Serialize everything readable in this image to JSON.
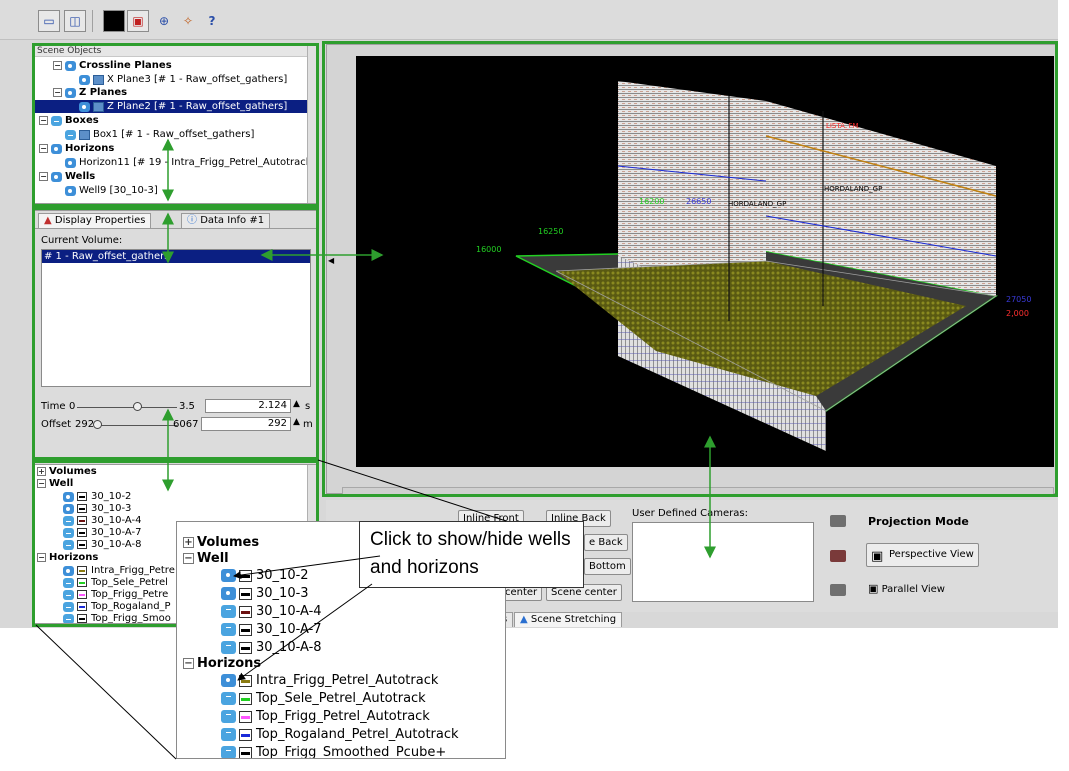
{
  "scene_objects": {
    "title": "Scene Objects",
    "items": [
      {
        "label": "Crossline Planes",
        "bold": true
      },
      {
        "label": "X Plane3 [# 1 - Raw_offset_gathers]",
        "bold": false
      },
      {
        "label": "Z Planes",
        "bold": true
      },
      {
        "label": "Z Plane2 [# 1 - Raw_offset_gathers]",
        "bold": false
      },
      {
        "label": "Boxes",
        "bold": true
      },
      {
        "label": "Box1 [# 1 - Raw_offset_gathers]",
        "bold": false
      },
      {
        "label": "Horizons",
        "bold": true
      },
      {
        "label": "Horizon11 [# 19 - Intra_Frigg_Petrel_Autotrack",
        "bold": false
      },
      {
        "label": "Wells",
        "bold": true
      },
      {
        "label": "Well9 [30_10-3]",
        "bold": false
      }
    ]
  },
  "display_properties": {
    "tabs": [
      "Display Properties",
      "Data Info #1"
    ],
    "current_volume_label": "Current Volume:",
    "current_volume_item": "# 1 - Raw_offset_gathers",
    "time": {
      "label": "Time",
      "min": "0",
      "max": "3.5",
      "value": "2.124",
      "unit": "s",
      "fraction": 0.6
    },
    "offset": {
      "label": "Offset",
      "min": "292",
      "max": "6067",
      "value": "292",
      "unit": "m",
      "fraction": 0.0
    }
  },
  "layer_tree": {
    "volumes_label": "Volumes",
    "well_label": "Well",
    "wells": [
      {
        "name": "30_10-2",
        "color": "#000000",
        "visible": true
      },
      {
        "name": "30_10-3",
        "color": "#000000",
        "visible": true
      },
      {
        "name": "30_10-A-4",
        "color": "#6b0f0f",
        "visible": false
      },
      {
        "name": "30_10-A-7",
        "color": "#000000",
        "visible": false
      },
      {
        "name": "30_10-A-8",
        "color": "#000000",
        "visible": false
      }
    ],
    "horizons_label": "Horizons",
    "horizons_short": [
      "Intra_Frigg_Petre",
      "Top_Sele_Petrel",
      "Top_Frigg_Petre",
      "Top_Rogaland_P",
      "Top_Frigg_Smoo"
    ],
    "horizons": [
      {
        "name": "Intra_Frigg_Petrel_Autotrack",
        "color": "#8a7a10",
        "visible": true
      },
      {
        "name": "Top_Sele_Petrel_Autotrack",
        "color": "#22d022",
        "visible": false
      },
      {
        "name": "Top_Frigg_Petrel_Autotrack",
        "color": "#ff55ff",
        "visible": false
      },
      {
        "name": "Top_Rogaland_Petrel_Autotrack",
        "color": "#1a2ad8",
        "visible": false
      },
      {
        "name": "Top_Frigg_Smoothed_Pcube+",
        "color": "#000000",
        "visible": false
      }
    ]
  },
  "viewport": {
    "labels": [
      {
        "text": "16000",
        "color": "#22d022"
      },
      {
        "text": "16250",
        "color": "#22d022"
      },
      {
        "text": "16200",
        "color": "#22d022"
      },
      {
        "text": "26650",
        "color": "#3a3ad8"
      },
      {
        "text": "HORDALAND_GP",
        "color": "#000000"
      },
      {
        "text": "HORDALAND_GP",
        "color": "#000000"
      },
      {
        "text": "LISTA_FM",
        "color": "#ff3030"
      },
      {
        "text": "27050",
        "color": "#3a3ad8"
      },
      {
        "text": "2,000",
        "color": "#ff3030"
      }
    ]
  },
  "camera": {
    "buttons": [
      "Inline Front",
      "Inline Back",
      "e Back",
      "Bottom",
      "center",
      "Scene center"
    ],
    "user_defined_label": "User Defined Cameras:",
    "projection_title": "Projection Mode",
    "perspective": "Perspective View",
    "parallel": "Parallel View",
    "bottom_tabs": [
      "s",
      "Scene Stretching"
    ]
  },
  "callout": {
    "text": "Click to show/hide wells and horizons"
  },
  "colors": {
    "highlight": "#2e9e2e",
    "selection": "#0b1f82"
  }
}
